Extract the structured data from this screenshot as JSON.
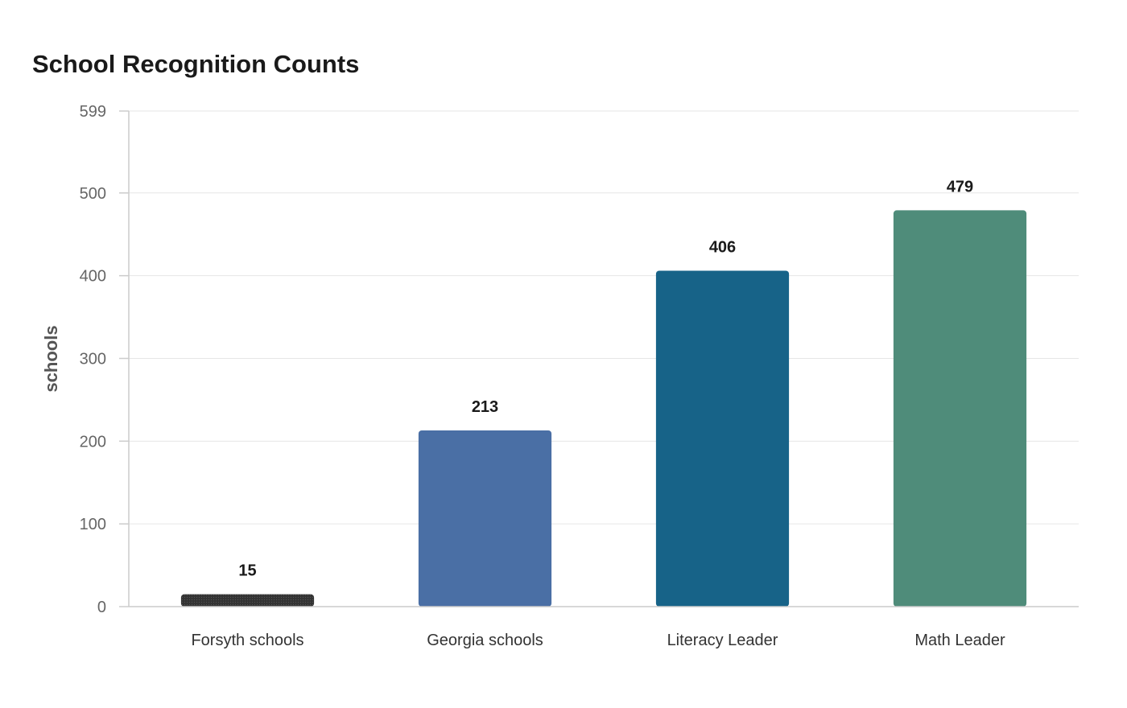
{
  "chart_data": {
    "type": "bar",
    "title": "School Recognition Counts",
    "xlabel": "",
    "ylabel": "schools",
    "categories": [
      "Forsyth schools",
      "Georgia schools",
      "Literacy Leader",
      "Math Leader"
    ],
    "values": [
      15,
      213,
      406,
      479
    ],
    "colors": [
      "#333333",
      "#4a6fa5",
      "#176388",
      "#4f8c7a"
    ],
    "ylim": [
      0,
      599
    ],
    "yticks": [
      0,
      100,
      200,
      300,
      400,
      500,
      599
    ],
    "grid": true,
    "legend": "none"
  }
}
